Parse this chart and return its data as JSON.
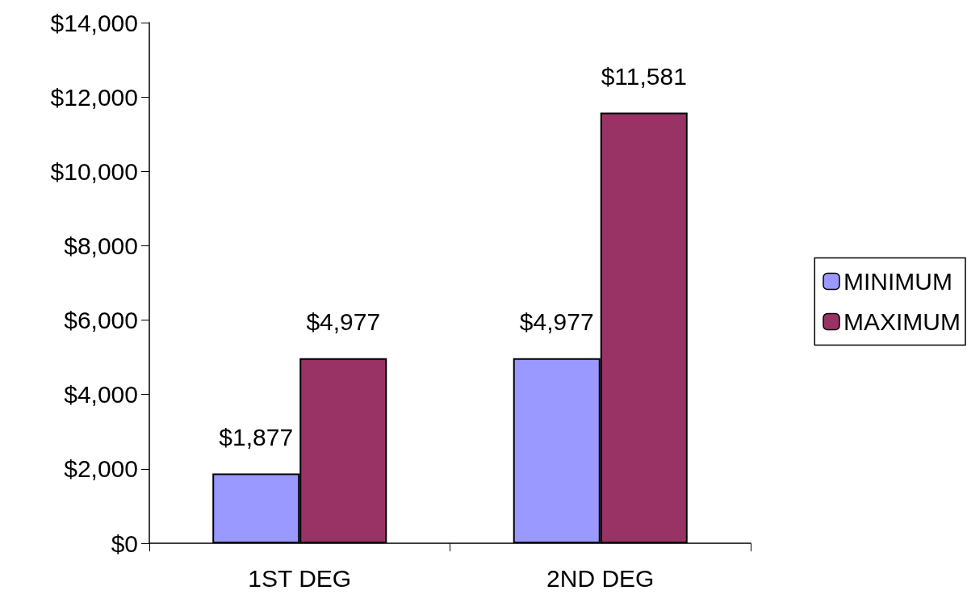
{
  "chart_data": {
    "type": "bar",
    "categories": [
      "1ST DEG",
      "2ND DEG"
    ],
    "series": [
      {
        "name": "MINIMUM",
        "color": "#9999ff",
        "values": [
          1877,
          4977
        ],
        "value_labels": [
          "$1,877",
          "$4,977"
        ]
      },
      {
        "name": "MAXIMUM",
        "color": "#993366",
        "values": [
          4977,
          11581
        ],
        "value_labels": [
          "$4,977",
          "$11,581"
        ]
      }
    ],
    "ylim": [
      0,
      14000
    ],
    "yticks": [
      {
        "value": 0,
        "label": "$0"
      },
      {
        "value": 2000,
        "label": "$2,000"
      },
      {
        "value": 4000,
        "label": "$4,000"
      },
      {
        "value": 6000,
        "label": "$6,000"
      },
      {
        "value": 8000,
        "label": "$8,000"
      },
      {
        "value": 10000,
        "label": "$10,000"
      },
      {
        "value": 12000,
        "label": "$12,000"
      },
      {
        "value": 14000,
        "label": "$14,000"
      }
    ],
    "grid": false,
    "legend": "right"
  }
}
